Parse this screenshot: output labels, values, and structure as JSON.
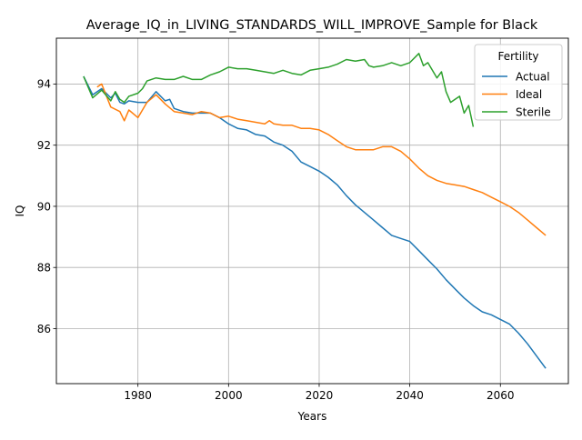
{
  "chart_data": {
    "type": "line",
    "title": "Average_IQ_in_LIVING_STANDARDS_WILL_IMPROVE_Sample for Black",
    "xlabel": "Years",
    "ylabel": "IQ",
    "xlim": [
      1962,
      2075
    ],
    "ylim": [
      84.2,
      95.5
    ],
    "xticks": [
      1980,
      2000,
      2020,
      2040,
      2060
    ],
    "yticks": [
      86,
      88,
      90,
      92,
      94
    ],
    "grid": true,
    "legend": {
      "title": "Fertility",
      "placement": "top-right"
    },
    "series": [
      {
        "name": "Actual",
        "color": "#1f77b4",
        "points": [
          [
            1968,
            94.25
          ],
          [
            1970,
            93.65
          ],
          [
            1972,
            93.85
          ],
          [
            1974,
            93.55
          ],
          [
            1975,
            93.7
          ],
          [
            1976,
            93.4
          ],
          [
            1977,
            93.35
          ],
          [
            1978,
            93.45
          ],
          [
            1980,
            93.4
          ],
          [
            1982,
            93.4
          ],
          [
            1984,
            93.75
          ],
          [
            1986,
            93.45
          ],
          [
            1987,
            93.5
          ],
          [
            1988,
            93.2
          ],
          [
            1990,
            93.1
          ],
          [
            1992,
            93.05
          ],
          [
            1994,
            93.05
          ],
          [
            1996,
            93.05
          ],
          [
            1998,
            92.9
          ],
          [
            2000,
            92.7
          ],
          [
            2002,
            92.55
          ],
          [
            2004,
            92.5
          ],
          [
            2006,
            92.35
          ],
          [
            2008,
            92.3
          ],
          [
            2010,
            92.1
          ],
          [
            2012,
            92.0
          ],
          [
            2014,
            91.8
          ],
          [
            2016,
            91.45
          ],
          [
            2018,
            91.3
          ],
          [
            2020,
            91.15
          ],
          [
            2022,
            90.95
          ],
          [
            2024,
            90.7
          ],
          [
            2026,
            90.35
          ],
          [
            2028,
            90.05
          ],
          [
            2030,
            89.8
          ],
          [
            2032,
            89.55
          ],
          [
            2034,
            89.3
          ],
          [
            2036,
            89.05
          ],
          [
            2038,
            88.95
          ],
          [
            2040,
            88.85
          ],
          [
            2042,
            88.55
          ],
          [
            2044,
            88.25
          ],
          [
            2046,
            87.95
          ],
          [
            2048,
            87.6
          ],
          [
            2050,
            87.3
          ],
          [
            2052,
            87.0
          ],
          [
            2054,
            86.75
          ],
          [
            2056,
            86.55
          ],
          [
            2058,
            86.45
          ],
          [
            2060,
            86.3
          ],
          [
            2062,
            86.15
          ],
          [
            2064,
            85.85
          ],
          [
            2066,
            85.5
          ],
          [
            2068,
            85.1
          ],
          [
            2070,
            84.7
          ]
        ]
      },
      {
        "name": "Ideal",
        "color": "#ff7f0e",
        "points": [
          [
            1971,
            93.9
          ],
          [
            1972,
            94.0
          ],
          [
            1974,
            93.25
          ],
          [
            1976,
            93.1
          ],
          [
            1977,
            92.8
          ],
          [
            1978,
            93.15
          ],
          [
            1980,
            92.9
          ],
          [
            1982,
            93.4
          ],
          [
            1984,
            93.65
          ],
          [
            1986,
            93.35
          ],
          [
            1988,
            93.1
          ],
          [
            1990,
            93.05
          ],
          [
            1992,
            93.0
          ],
          [
            1994,
            93.1
          ],
          [
            1996,
            93.05
          ],
          [
            1998,
            92.9
          ],
          [
            2000,
            92.95
          ],
          [
            2002,
            92.85
          ],
          [
            2004,
            92.8
          ],
          [
            2006,
            92.75
          ],
          [
            2008,
            92.7
          ],
          [
            2009,
            92.8
          ],
          [
            2010,
            92.7
          ],
          [
            2012,
            92.65
          ],
          [
            2014,
            92.65
          ],
          [
            2016,
            92.55
          ],
          [
            2018,
            92.55
          ],
          [
            2020,
            92.5
          ],
          [
            2022,
            92.35
          ],
          [
            2024,
            92.15
          ],
          [
            2026,
            91.95
          ],
          [
            2028,
            91.85
          ],
          [
            2030,
            91.85
          ],
          [
            2032,
            91.85
          ],
          [
            2034,
            91.95
          ],
          [
            2036,
            91.95
          ],
          [
            2038,
            91.8
          ],
          [
            2040,
            91.55
          ],
          [
            2042,
            91.25
          ],
          [
            2044,
            91.0
          ],
          [
            2046,
            90.85
          ],
          [
            2048,
            90.75
          ],
          [
            2050,
            90.7
          ],
          [
            2052,
            90.65
          ],
          [
            2054,
            90.55
          ],
          [
            2056,
            90.45
          ],
          [
            2058,
            90.3
          ],
          [
            2060,
            90.15
          ],
          [
            2062,
            90.0
          ],
          [
            2064,
            89.8
          ],
          [
            2066,
            89.55
          ],
          [
            2068,
            89.3
          ],
          [
            2070,
            89.05
          ]
        ]
      },
      {
        "name": "Sterile",
        "color": "#2ca02c",
        "points": [
          [
            1968,
            94.25
          ],
          [
            1970,
            93.55
          ],
          [
            1972,
            93.8
          ],
          [
            1974,
            93.45
          ],
          [
            1975,
            93.75
          ],
          [
            1976,
            93.5
          ],
          [
            1977,
            93.4
          ],
          [
            1978,
            93.6
          ],
          [
            1980,
            93.7
          ],
          [
            1981,
            93.85
          ],
          [
            1982,
            94.1
          ],
          [
            1984,
            94.2
          ],
          [
            1986,
            94.15
          ],
          [
            1988,
            94.15
          ],
          [
            1990,
            94.25
          ],
          [
            1992,
            94.15
          ],
          [
            1994,
            94.15
          ],
          [
            1996,
            94.3
          ],
          [
            1998,
            94.4
          ],
          [
            2000,
            94.55
          ],
          [
            2002,
            94.5
          ],
          [
            2004,
            94.5
          ],
          [
            2006,
            94.45
          ],
          [
            2008,
            94.4
          ],
          [
            2010,
            94.35
          ],
          [
            2012,
            94.45
          ],
          [
            2014,
            94.35
          ],
          [
            2016,
            94.3
          ],
          [
            2018,
            94.45
          ],
          [
            2020,
            94.5
          ],
          [
            2022,
            94.55
          ],
          [
            2024,
            94.65
          ],
          [
            2026,
            94.8
          ],
          [
            2028,
            94.75
          ],
          [
            2030,
            94.8
          ],
          [
            2031,
            94.6
          ],
          [
            2032,
            94.55
          ],
          [
            2034,
            94.6
          ],
          [
            2036,
            94.7
          ],
          [
            2038,
            94.6
          ],
          [
            2040,
            94.7
          ],
          [
            2042,
            95.0
          ],
          [
            2043,
            94.6
          ],
          [
            2044,
            94.7
          ],
          [
            2046,
            94.2
          ],
          [
            2047,
            94.4
          ],
          [
            2048,
            93.75
          ],
          [
            2049,
            93.4
          ],
          [
            2051,
            93.6
          ],
          [
            2052,
            93.05
          ],
          [
            2053,
            93.3
          ],
          [
            2054,
            92.6
          ]
        ]
      }
    ]
  }
}
